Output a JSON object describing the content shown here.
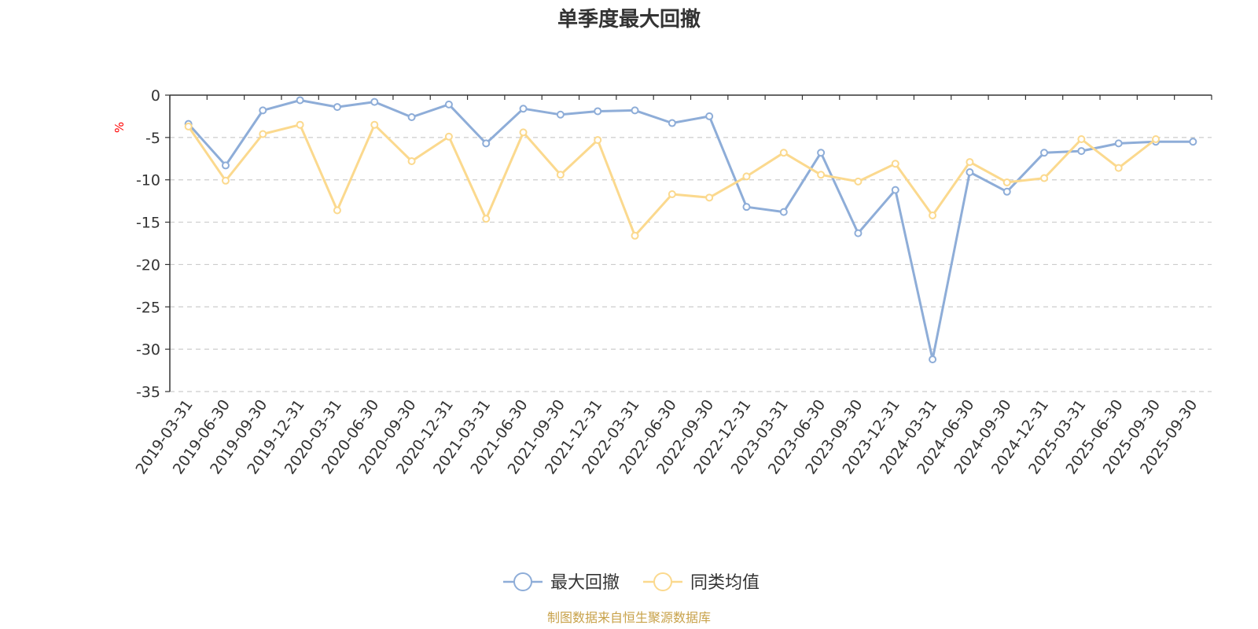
{
  "chart_data": {
    "type": "line",
    "title": "单季度最大回撤",
    "ylabel": "%",
    "ylim": [
      -35,
      0
    ],
    "yticks": [
      0,
      -5,
      -10,
      -15,
      -20,
      -25,
      -30,
      -35
    ],
    "grid": true,
    "legend_position": "bottom-center",
    "categories": [
      "2019-03-31",
      "2019-06-30",
      "2019-09-30",
      "2019-12-31",
      "2020-03-31",
      "2020-06-30",
      "2020-09-30",
      "2020-12-31",
      "2021-03-31",
      "2021-06-30",
      "2021-09-30",
      "2021-12-31",
      "2022-03-31",
      "2022-06-30",
      "2022-09-30",
      "2022-12-31",
      "2023-03-31",
      "2023-06-30",
      "2023-09-30",
      "2023-12-31",
      "2024-03-31",
      "2024-06-30",
      "2024-09-30",
      "2024-12-31",
      "2025-03-31",
      "2025-06-30",
      "2025-09-30",
      "2025-09-30"
    ],
    "series": [
      {
        "name": "最大回撤",
        "color": "#8eadd8",
        "values": [
          -3.4,
          -8.3,
          -1.8,
          -0.6,
          -1.4,
          -0.8,
          -2.6,
          -1.1,
          -5.7,
          -1.6,
          -2.3,
          -1.9,
          -1.8,
          -3.3,
          -2.5,
          -13.2,
          -13.8,
          -6.8,
          -16.3,
          -11.2,
          -31.2,
          -9.1,
          -11.4,
          -6.8,
          -6.6,
          -5.7,
          -5.5,
          -5.5
        ]
      },
      {
        "name": "同类均值",
        "color": "#fbd98e",
        "values": [
          -3.7,
          -10.1,
          -4.6,
          -3.5,
          -13.6,
          -3.5,
          -7.8,
          -4.9,
          -14.6,
          -4.4,
          -9.4,
          -5.3,
          -16.6,
          -11.7,
          -12.1,
          -9.6,
          -6.8,
          -9.4,
          -10.2,
          -8.1,
          -14.2,
          -7.9,
          -10.3,
          -9.8,
          -5.2,
          -8.6,
          -5.2,
          null
        ]
      }
    ],
    "source": "制图数据来自恒生聚源数据库"
  }
}
